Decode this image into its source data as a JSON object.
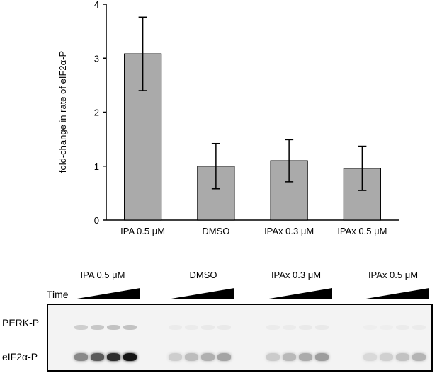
{
  "chart_data": {
    "type": "bar",
    "categories": [
      "IPA 0.5 μM",
      "DMSO",
      "IPAx 0.3 μM",
      "IPAx 0.5 μM"
    ],
    "values": [
      3.08,
      1.0,
      1.1,
      0.96
    ],
    "error": [
      0.68,
      0.42,
      0.39,
      0.41
    ],
    "ylabel": "fold-change in rate of eIF2α-P",
    "xlabel": "",
    "title": "",
    "ylim": [
      0,
      4
    ],
    "yticks": [
      0,
      1,
      2,
      3,
      4
    ],
    "grid": false,
    "bar_color": "#aaaaaa"
  },
  "blot": {
    "time_label": "Time",
    "row_labels": [
      "PERK-P",
      "eIF2α-P"
    ],
    "conditions": [
      "IPA 0.5 μM",
      "DMSO",
      "IPAx 0.3 μM",
      "IPAx 0.5 μM"
    ],
    "eif2a_intensity": [
      [
        0.45,
        0.65,
        0.85,
        0.95
      ],
      [
        0.15,
        0.22,
        0.28,
        0.33
      ],
      [
        0.16,
        0.24,
        0.3,
        0.36
      ],
      [
        0.1,
        0.14,
        0.2,
        0.26
      ]
    ],
    "perk_intensity": [
      [
        0.15,
        0.18,
        0.2,
        0.2
      ],
      [
        0.02,
        0.02,
        0.03,
        0.03
      ],
      [
        0.02,
        0.02,
        0.03,
        0.03
      ],
      [
        0.01,
        0.01,
        0.02,
        0.02
      ]
    ]
  }
}
